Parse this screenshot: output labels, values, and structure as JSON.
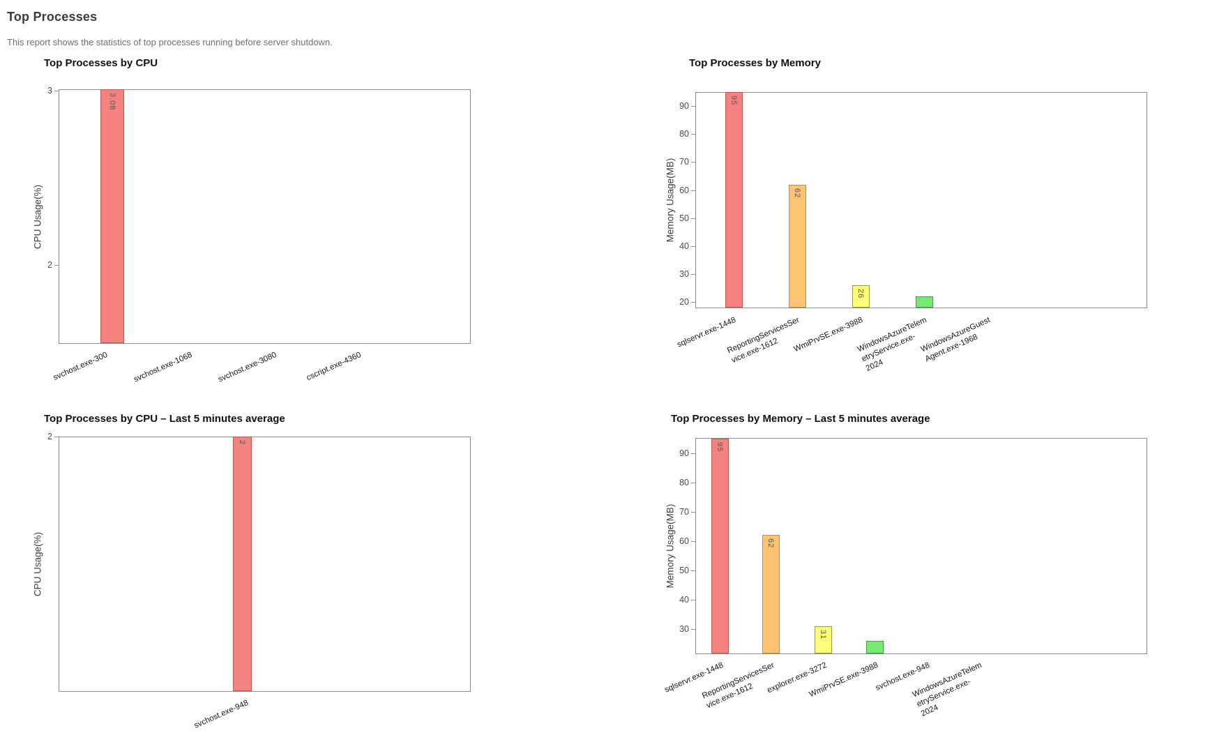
{
  "page": {
    "title": "Top Processes",
    "subtitle": "This report shows the statistics of top processes running before server shutdown."
  },
  "palette": {
    "red": {
      "fill": "#F4827F",
      "stroke": "#B95A55"
    },
    "orange": {
      "fill": "#FBC372",
      "stroke": "#BE8F43"
    },
    "yellow": {
      "fill": "#FCFC78",
      "stroke": "#99993D"
    },
    "green": {
      "fill": "#74E974",
      "stroke": "#3EA13E"
    }
  },
  "chart_data": [
    {
      "type": "bar",
      "title": "Top Processes by CPU",
      "ylabel": "CPU Usage(%)",
      "xlabel": "",
      "grid": false,
      "legend": false,
      "ylim": [
        1.548,
        3.008
      ],
      "yticks": [
        2,
        3
      ],
      "categories": [
        [
          "svchost.exe-300"
        ],
        [
          "svchost.exe-1068"
        ],
        [
          "svchost.exe-3080"
        ],
        [
          "cscript.exe-4360"
        ]
      ],
      "values": [
        3.08,
        null,
        null,
        null
      ],
      "bar_value_labels": [
        "3.08",
        null,
        null,
        null
      ],
      "bar_colors": [
        "red",
        null,
        null,
        null
      ]
    },
    {
      "type": "bar",
      "title": "Top Processes by Memory",
      "ylabel": "Memory Usage(MB)",
      "xlabel": "",
      "grid": false,
      "legend": false,
      "ylim": [
        17.8,
        95.0
      ],
      "yticks": [
        20,
        30,
        40,
        50,
        60,
        70,
        80,
        90
      ],
      "categories": [
        [
          "sqlservr.exe-1448"
        ],
        [
          "ReportingServicesSer",
          "vice.exe-1612"
        ],
        [
          "WmiPrvSE.exe-3988"
        ],
        [
          "WindowsAzureTelem",
          "etryService.exe-",
          "2024"
        ],
        [
          "WindowsAzureGuest",
          "Agent.exe-1968"
        ]
      ],
      "values": [
        95,
        62,
        26,
        22,
        null
      ],
      "bar_value_labels": [
        "95",
        "62",
        "26",
        null,
        null
      ],
      "bar_colors": [
        "red",
        "orange",
        "yellow",
        "green",
        null
      ]
    },
    {
      "type": "bar",
      "title": "Top Processes by CPU – Last 5 minutes average",
      "ylabel": "CPU Usage(%)",
      "xlabel": "",
      "grid": false,
      "legend": false,
      "ylim": [
        1.0,
        2.0
      ],
      "yticks": [
        2
      ],
      "categories": [
        [
          "svchost.exe-948"
        ]
      ],
      "values": [
        2
      ],
      "bar_value_labels": [
        "2"
      ],
      "bar_colors": [
        "red"
      ]
    },
    {
      "type": "bar",
      "title": "Top Processes by Memory – Last 5 minutes average",
      "ylabel": "Memory Usage(MB)",
      "xlabel": "",
      "grid": false,
      "legend": false,
      "ylim": [
        21.4,
        95.2
      ],
      "yticks": [
        30,
        40,
        50,
        60,
        70,
        80,
        90
      ],
      "categories": [
        [
          "sqlservr.exe-1448"
        ],
        [
          "ReportingServicesSer",
          "vice.exe-1612"
        ],
        [
          "explorer.exe-3272"
        ],
        [
          "WmiPrvSE.exe-3988"
        ],
        [
          "svchost.exe-948"
        ],
        [
          "WindowsAzureTelem",
          "etryService.exe-",
          "2024"
        ]
      ],
      "values": [
        95,
        62,
        31,
        26,
        null,
        null
      ],
      "bar_value_labels": [
        "95",
        "62",
        "31",
        null,
        null,
        null
      ],
      "bar_colors": [
        "red",
        "orange",
        "yellow",
        "green",
        null,
        null
      ]
    }
  ]
}
